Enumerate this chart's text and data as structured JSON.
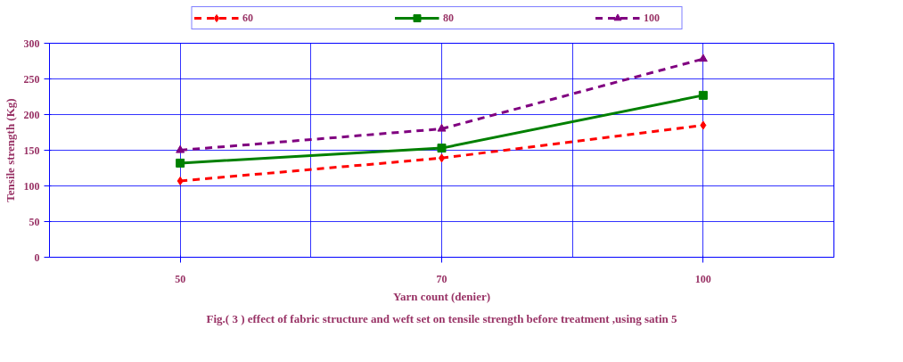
{
  "chart_data": {
    "type": "line",
    "title": "Fig.( 3 ) effect of fabric structure and weft set on tensile strength before treatment ,using satin 5",
    "xlabel": "Yarn count (denier)",
    "ylabel": "Tensile strength (Kg)",
    "categories": [
      "50",
      "70",
      "100"
    ],
    "series": [
      {
        "name": "60",
        "color": "#ff0000",
        "values": [
          107,
          139,
          185
        ],
        "marker": "diamond",
        "line_style": "dashed"
      },
      {
        "name": "80",
        "color": "#008000",
        "values": [
          132,
          153,
          227
        ],
        "marker": "square",
        "line_style": "solid"
      },
      {
        "name": "100",
        "color": "#800080",
        "values": [
          150,
          180,
          278
        ],
        "marker": "triangle",
        "line_style": "dashed"
      }
    ],
    "ylim": [
      0,
      300
    ],
    "yticks": [
      0,
      50,
      100,
      150,
      200,
      250,
      300
    ],
    "grid": true,
    "legend": "top"
  }
}
